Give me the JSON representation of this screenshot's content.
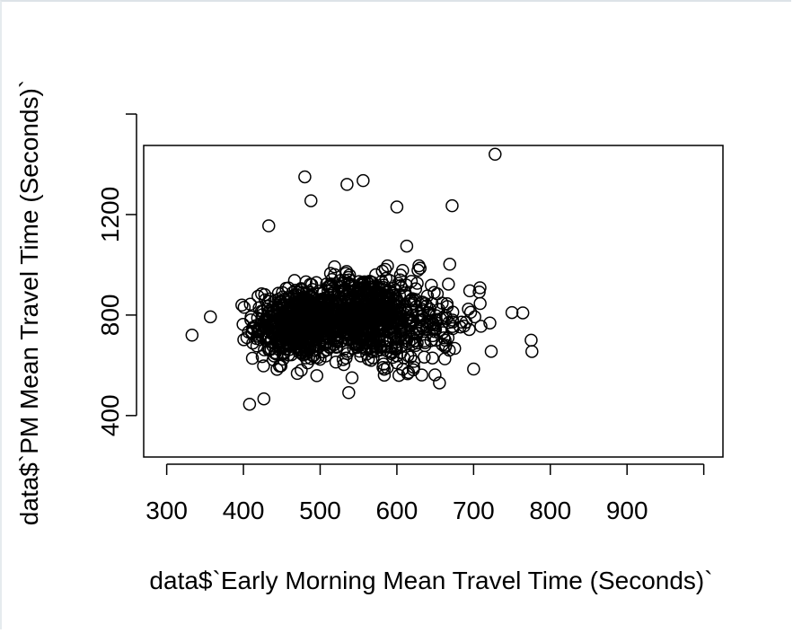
{
  "chart_data": {
    "type": "scatter",
    "title": "",
    "xlabel": "data$`Early Morning Mean Travel Time (Seconds)`",
    "ylabel": "data$`PM Mean Travel Time (Seconds)`",
    "xlim": [
      270,
      1025
    ],
    "ylim": [
      235,
      1475
    ],
    "x_ticks": [
      300,
      400,
      500,
      600,
      700,
      800,
      900,
      1000
    ],
    "x_tick_labels": [
      "300",
      "400",
      "500",
      "600",
      "700",
      "800",
      "900",
      ""
    ],
    "y_ticks": [
      400,
      800,
      1200,
      1600
    ],
    "y_tick_labels": [
      "400",
      "800",
      "1200",
      ""
    ],
    "marker": "open-circle",
    "grid": false,
    "point_color": "#000000",
    "notable_points": [
      {
        "x": 333,
        "y": 720
      },
      {
        "x": 408,
        "y": 445
      },
      {
        "x": 433,
        "y": 1155
      },
      {
        "x": 480,
        "y": 1350
      },
      {
        "x": 488,
        "y": 1255
      },
      {
        "x": 535,
        "y": 1320
      },
      {
        "x": 556,
        "y": 1335
      },
      {
        "x": 600,
        "y": 1230
      },
      {
        "x": 672,
        "y": 1235
      },
      {
        "x": 728,
        "y": 1440
      },
      {
        "x": 775,
        "y": 700
      },
      {
        "x": 776,
        "y": 655
      },
      {
        "x": 750,
        "y": 810
      },
      {
        "x": 700,
        "y": 585
      }
    ],
    "bulk": {
      "approx_count": 1400,
      "clusters": [
        {
          "x_mean": 470,
          "x_sd": 28,
          "y_mean": 760,
          "y_sd": 70,
          "weight": 0.42
        },
        {
          "x_mean": 555,
          "x_sd": 35,
          "y_mean": 800,
          "y_sd": 80,
          "weight": 0.43
        },
        {
          "x_mean": 620,
          "x_sd": 45,
          "y_mean": 770,
          "y_sd": 90,
          "weight": 0.15
        }
      ],
      "x_range": [
        330,
        780
      ],
      "y_range": [
        440,
        1450
      ]
    }
  }
}
